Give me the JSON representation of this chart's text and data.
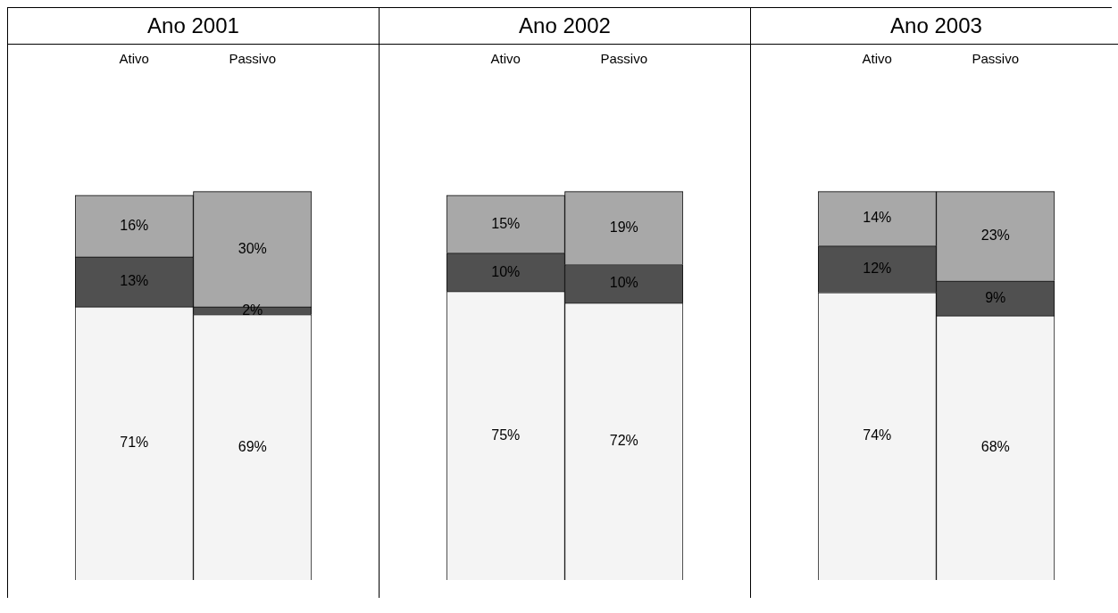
{
  "chart_data": [
    {
      "type": "bar",
      "title": "Ano 2001",
      "categories": [
        "Ativo",
        "Passivo"
      ],
      "stacked": true,
      "grid": false,
      "legend": false,
      "series": [
        {
          "color": "#f4f4f4",
          "values": [
            71,
            69
          ],
          "value_labels": [
            "71%",
            "69%"
          ]
        },
        {
          "color": "#505050",
          "values": [
            13,
            2
          ],
          "value_labels": [
            "13%",
            "2%"
          ]
        },
        {
          "color": "#a8a8a8",
          "values": [
            16,
            30
          ],
          "value_labels": [
            "16%",
            "30%"
          ]
        }
      ]
    },
    {
      "type": "bar",
      "title": "Ano 2002",
      "categories": [
        "Ativo",
        "Passivo"
      ],
      "stacked": true,
      "grid": false,
      "legend": false,
      "series": [
        {
          "color": "#f4f4f4",
          "values": [
            75,
            72
          ],
          "value_labels": [
            "75%",
            "72%"
          ]
        },
        {
          "color": "#505050",
          "values": [
            10,
            10
          ],
          "value_labels": [
            "10%",
            "10%"
          ]
        },
        {
          "color": "#a8a8a8",
          "values": [
            15,
            19
          ],
          "value_labels": [
            "15%",
            "19%"
          ]
        }
      ]
    },
    {
      "type": "bar",
      "title": "Ano 2003",
      "categories": [
        "Ativo",
        "Passivo"
      ],
      "stacked": true,
      "grid": false,
      "legend": false,
      "series": [
        {
          "color": "#f4f4f4",
          "values": [
            74,
            68
          ],
          "value_labels": [
            "74%",
            "68%"
          ]
        },
        {
          "color": "#505050",
          "values": [
            12,
            9
          ],
          "value_labels": [
            "12%",
            "9%"
          ]
        },
        {
          "color": "#a8a8a8",
          "values": [
            14,
            23
          ],
          "value_labels": [
            "14%",
            "23%"
          ]
        }
      ]
    }
  ]
}
